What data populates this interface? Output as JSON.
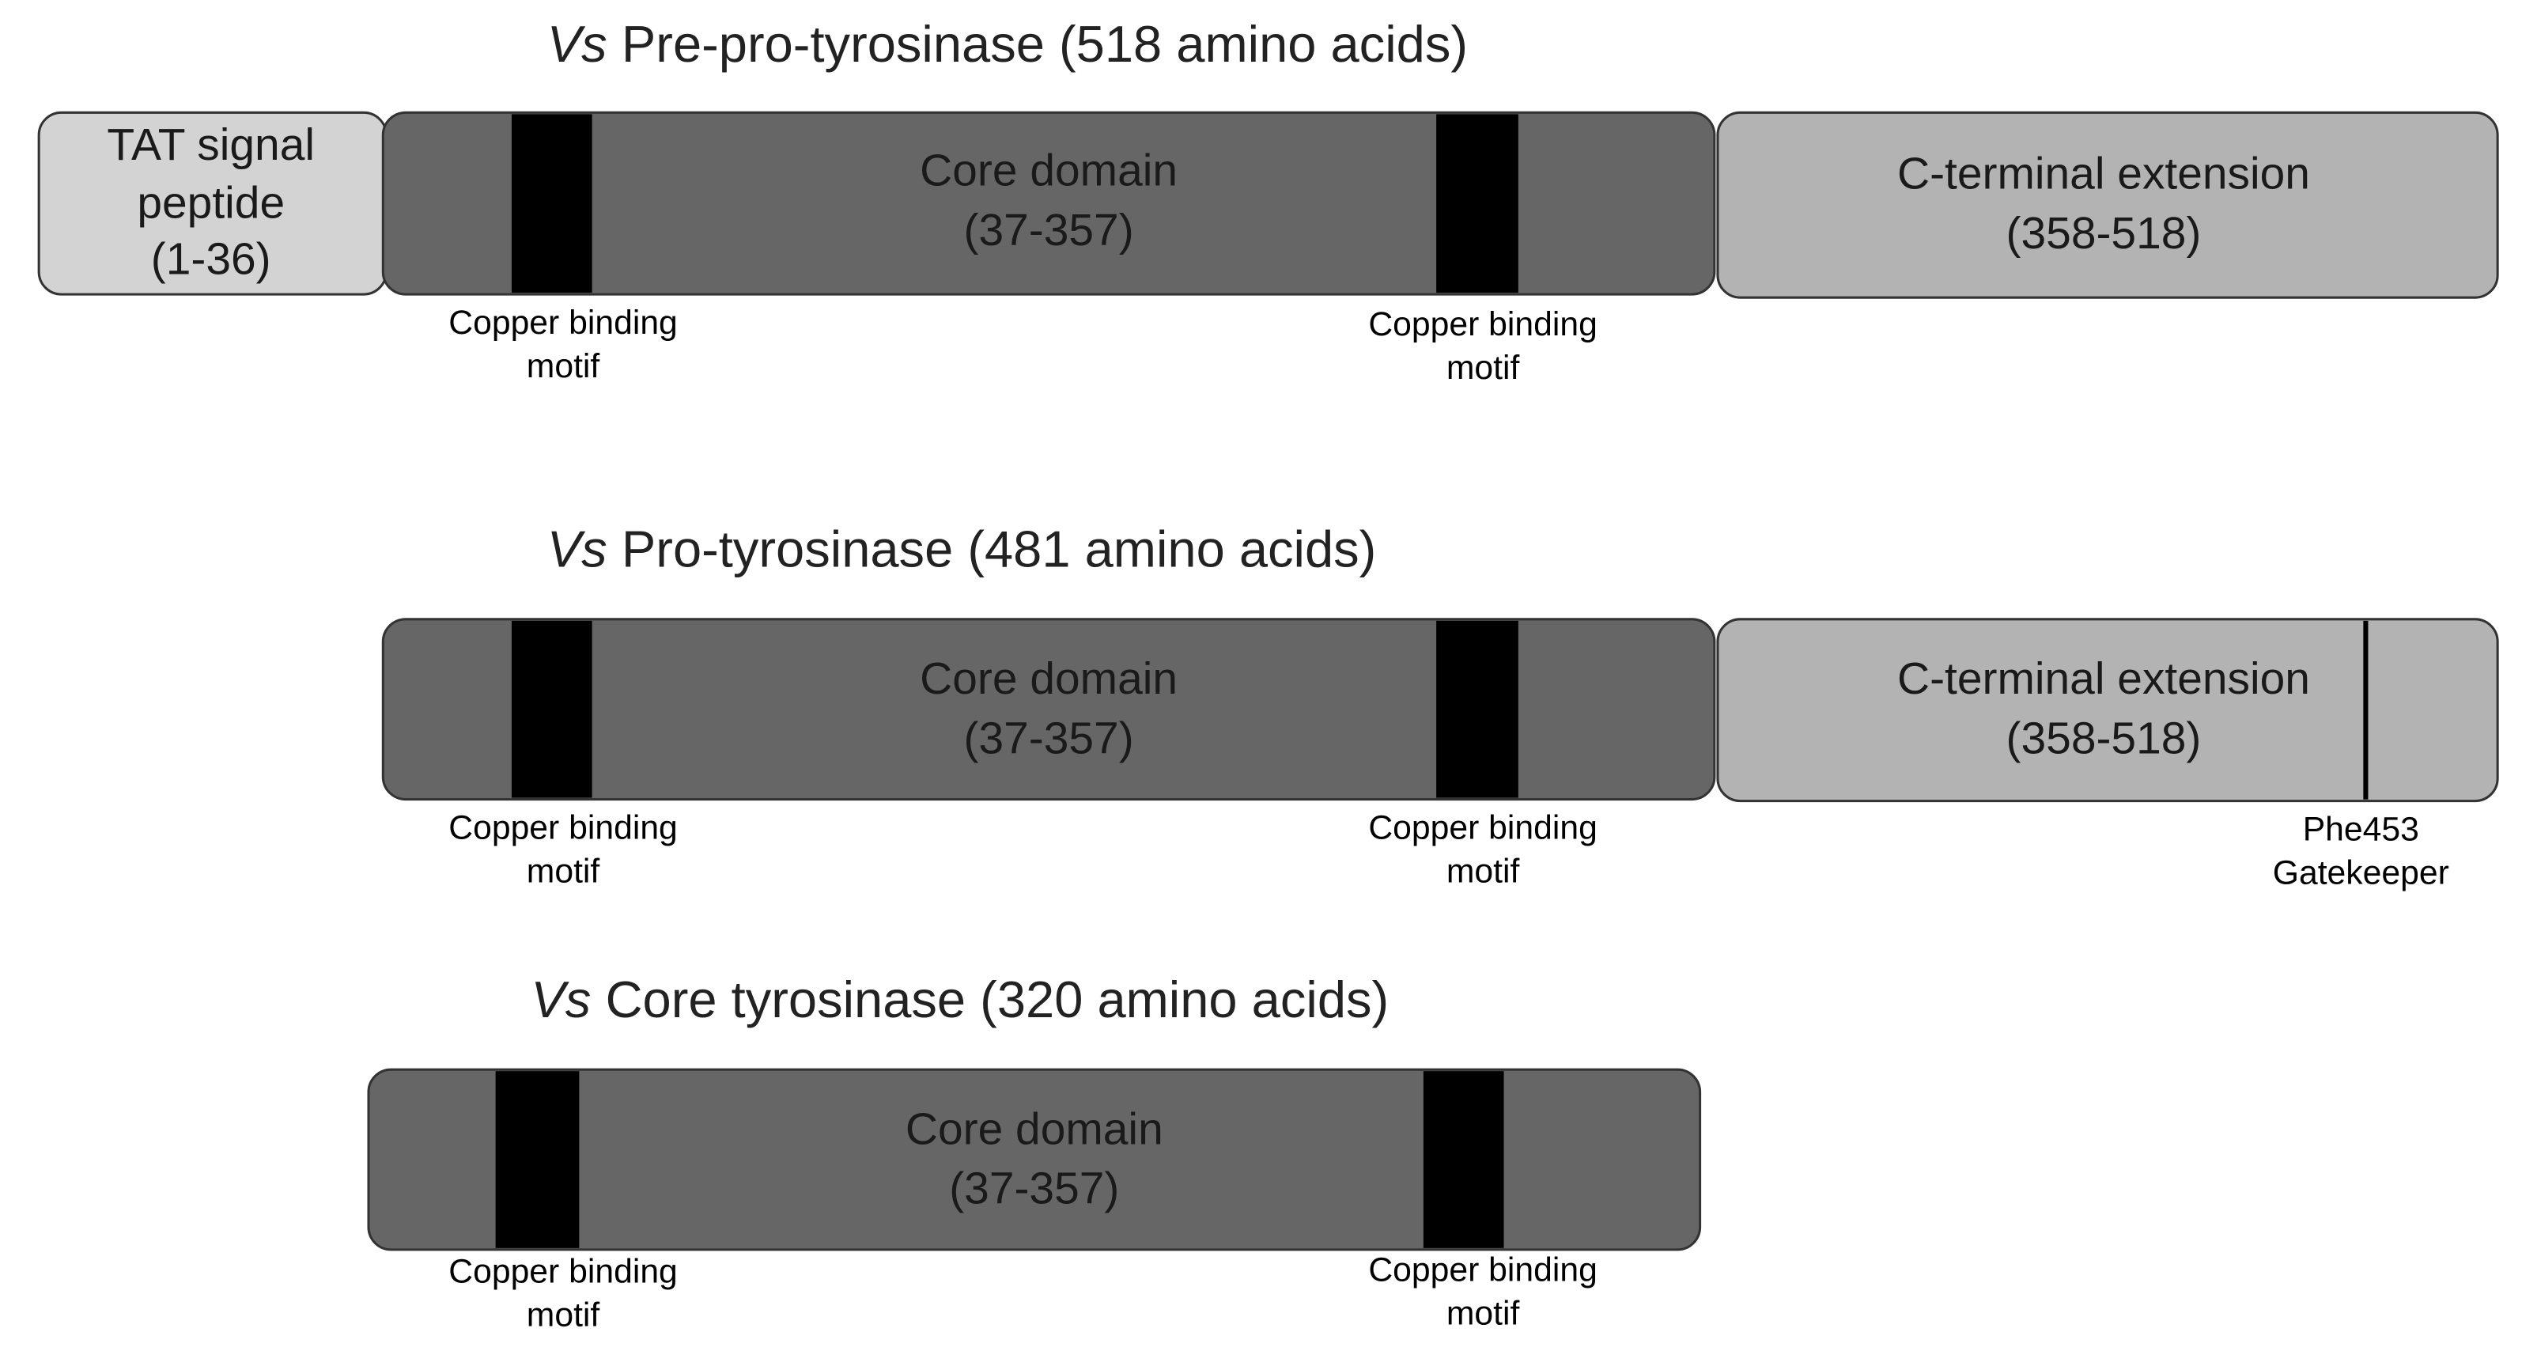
{
  "diagrams": [
    {
      "title": {
        "prefix": "Vs",
        "text": "Pre-pro-tyrosinase (518 amino acids)"
      },
      "segments": [
        {
          "label": [
            "TAT signal",
            "peptide",
            "(1-36)"
          ]
        },
        {
          "label": [
            "Core domain",
            "(37-357)"
          ]
        },
        {
          "label": [
            "C-terminal extension",
            "(358-518)"
          ]
        }
      ],
      "motifs": [
        [
          "Copper binding",
          "motif"
        ],
        [
          "Copper binding",
          "motif"
        ]
      ]
    },
    {
      "title": {
        "prefix": "Vs",
        "text": "Pro-tyrosinase (481 amino acids)"
      },
      "segments": [
        {
          "label": [
            "Core domain",
            "(37-357)"
          ]
        },
        {
          "label": [
            "C-terminal extension",
            "(358-518)"
          ]
        }
      ],
      "motifs": [
        [
          "Copper binding",
          "motif"
        ],
        [
          "Copper binding",
          "motif"
        ]
      ],
      "gatekeeper": [
        "Phe453",
        "Gatekeeper"
      ]
    },
    {
      "title": {
        "prefix": "Vs",
        "text": "Core tyrosinase (320 amino acids)"
      },
      "segments": [
        {
          "label": [
            "Core domain",
            "(37-357)"
          ]
        }
      ],
      "motifs": [
        [
          "Copper binding",
          "motif"
        ],
        [
          "Copper binding",
          "motif"
        ]
      ]
    }
  ]
}
